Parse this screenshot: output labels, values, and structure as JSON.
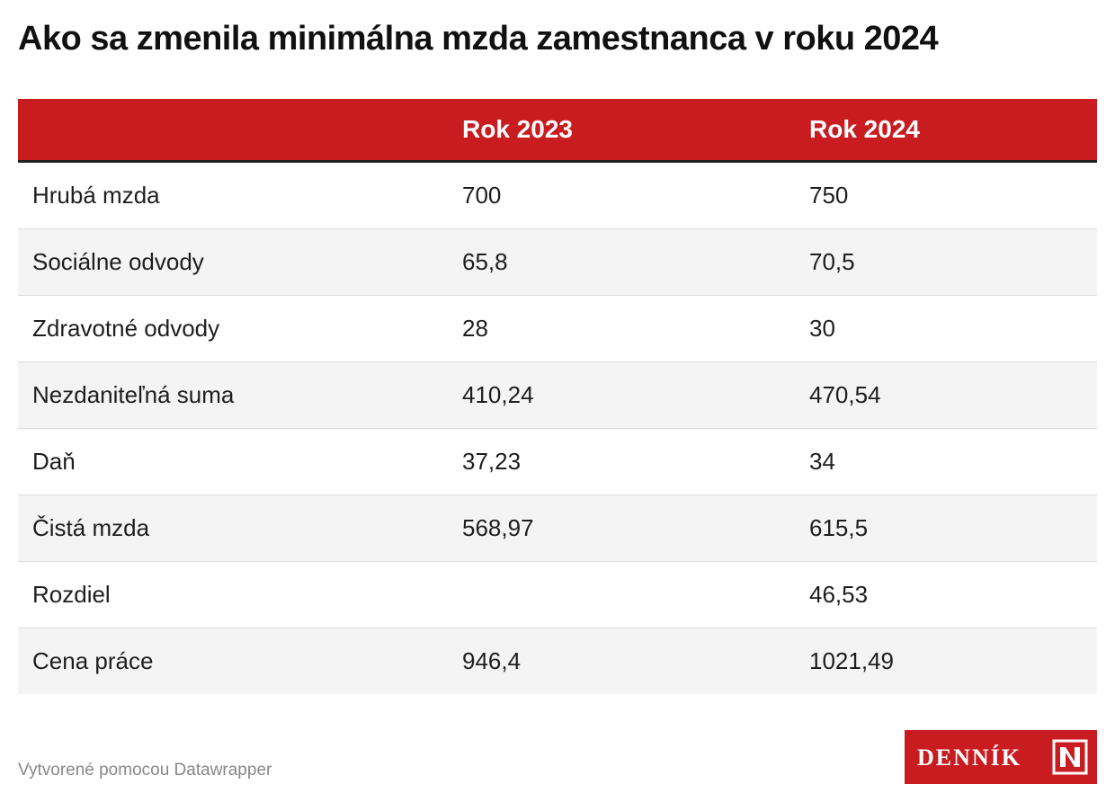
{
  "title": "Ako sa zmenila minimálna mzda zamestnanca v roku 2024",
  "chart_data": {
    "type": "table",
    "columns": [
      "",
      "Rok 2023",
      "Rok 2024"
    ],
    "rows": [
      {
        "label": "Hrubá mzda",
        "values": [
          "700",
          "750"
        ]
      },
      {
        "label": "Sociálne odvody",
        "values": [
          "65,8",
          "70,5"
        ]
      },
      {
        "label": "Zdravotné odvody",
        "values": [
          "28",
          "30"
        ]
      },
      {
        "label": "Nezdaniteľná suma",
        "values": [
          "410,24",
          "470,54"
        ]
      },
      {
        "label": "Daň",
        "values": [
          "37,23",
          "34"
        ]
      },
      {
        "label": "Čistá mzda",
        "values": [
          "568,97",
          "615,5"
        ]
      },
      {
        "label": "Rozdiel",
        "values": [
          "",
          "46,53"
        ]
      },
      {
        "label": "Cena práce",
        "values": [
          "946,4",
          "1021,49"
        ]
      }
    ]
  },
  "footer": {
    "credit": "Vytvorené pomocou Datawrapper"
  },
  "logo": {
    "text": "DENNÍK",
    "mark_icon": "denník-n-icon"
  },
  "colors": {
    "header_bg": "#c81c21",
    "header_text": "#ffffff",
    "row_shade": "#f4f4f4",
    "logo_bg": "#c81c21"
  }
}
